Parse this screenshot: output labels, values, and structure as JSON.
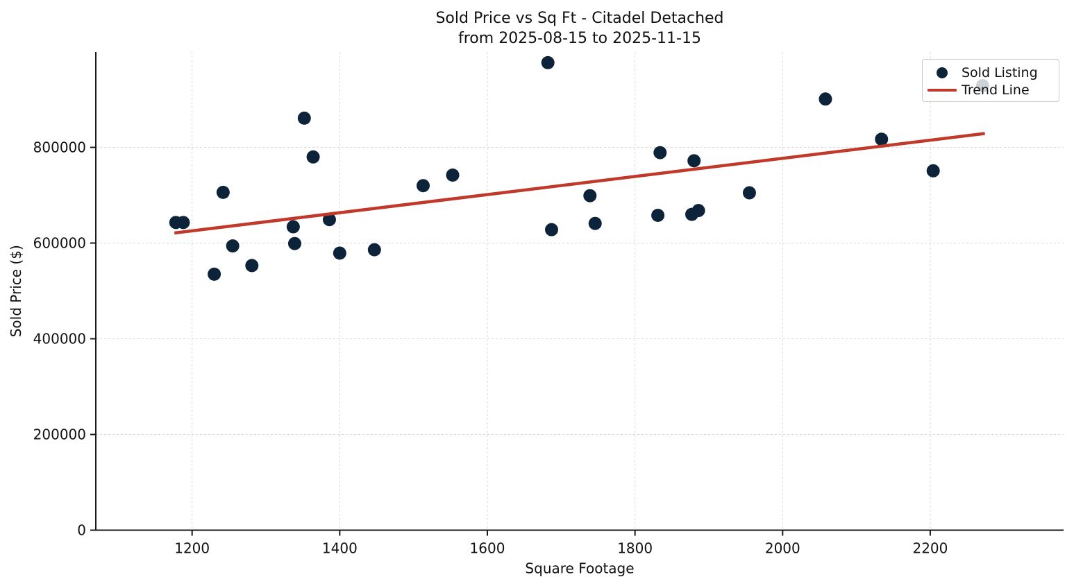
{
  "page": {
    "background": "#ffffff"
  },
  "chart_data": {
    "type": "scatter",
    "title": "Sold Price vs Sq Ft - Citadel Detached",
    "subtitle": "from 2025-08-15 to 2025-11-15",
    "xlabel": "Square Footage",
    "ylabel": "Sold Price ($)",
    "xlim": [
      1069,
      2381
    ],
    "ylim": [
      0,
      1000000
    ],
    "x_ticks": [
      1200,
      1400,
      1600,
      1800,
      2000,
      2200
    ],
    "y_ticks": [
      0,
      200000,
      400000,
      600000,
      800000
    ],
    "grid": true,
    "grid_style": "dashed",
    "legend_position": "upper right",
    "colors": {
      "scatter": "#0d2339",
      "trend": "#c0392b",
      "spine": "#1a1a1a",
      "grid": "#d9d9d9",
      "text": "#111111"
    },
    "series": [
      {
        "name": "Sold Listing",
        "type": "scatter",
        "color": "#0d2339",
        "points": [
          [
            1178,
            643000
          ],
          [
            1188,
            643000
          ],
          [
            1230,
            535000
          ],
          [
            1242,
            706000
          ],
          [
            1255,
            594000
          ],
          [
            1281,
            553000
          ],
          [
            1337,
            634000
          ],
          [
            1339,
            599000
          ],
          [
            1352,
            861000
          ],
          [
            1364,
            780000
          ],
          [
            1386,
            649000
          ],
          [
            1400,
            579000
          ],
          [
            1447,
            586000
          ],
          [
            1513,
            720000
          ],
          [
            1553,
            742000
          ],
          [
            1682,
            977000
          ],
          [
            1687,
            628000
          ],
          [
            1739,
            699000
          ],
          [
            1746,
            641000
          ],
          [
            1831,
            658000
          ],
          [
            1834,
            789000
          ],
          [
            1877,
            660000
          ],
          [
            1886,
            668000
          ],
          [
            1880,
            772000
          ],
          [
            1955,
            705000
          ],
          [
            2058,
            901000
          ],
          [
            2134,
            817000
          ],
          [
            2204,
            751000
          ],
          [
            2271,
            929000
          ]
        ]
      },
      {
        "name": "Trend Line",
        "type": "line",
        "color": "#c0392b",
        "points": [
          [
            1176,
            621000
          ],
          [
            2274,
            829000
          ]
        ]
      }
    ]
  }
}
